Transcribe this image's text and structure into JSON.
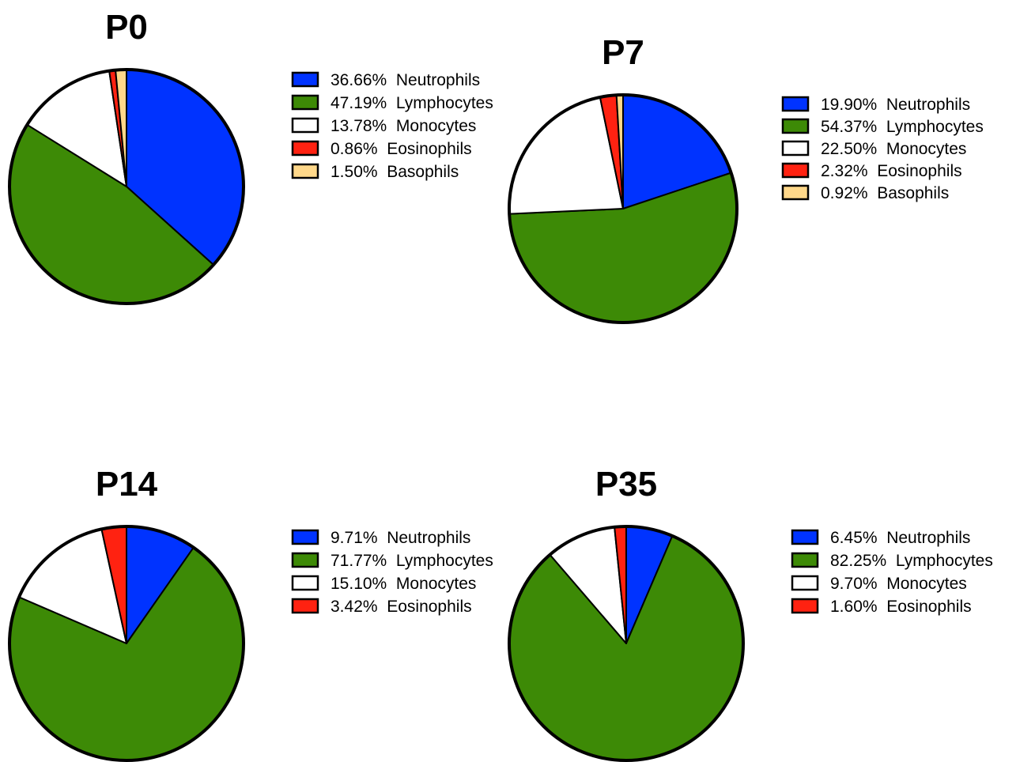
{
  "chart_data": [
    {
      "type": "pie",
      "title": "P0",
      "slices": [
        {
          "label": "36.66%  Neutrophils",
          "name": "Neutrophils",
          "value": 36.66,
          "color": "#0033ff"
        },
        {
          "label": "47.19%  Lymphocytes",
          "name": "Lymphocytes",
          "value": 47.19,
          "color": "#3d8a06"
        },
        {
          "label": "13.78%  Monocytes",
          "name": "Monocytes",
          "value": 13.78,
          "color": "#ffffff"
        },
        {
          "label": "0.86%  Eosinophils",
          "name": "Eosinophils",
          "value": 0.86,
          "color": "#ff2211"
        },
        {
          "label": "1.50%  Basophils",
          "name": "Basophils",
          "value": 1.5,
          "color": "#ffd88a"
        }
      ]
    },
    {
      "type": "pie",
      "title": "P7",
      "slices": [
        {
          "label": "19.90%  Neutrophils",
          "name": "Neutrophils",
          "value": 19.9,
          "color": "#0033ff"
        },
        {
          "label": "54.37%  Lymphocytes",
          "name": "Lymphocytes",
          "value": 54.37,
          "color": "#3d8a06"
        },
        {
          "label": "22.50%  Monocytes",
          "name": "Monocytes",
          "value": 22.5,
          "color": "#ffffff"
        },
        {
          "label": "2.32%  Eosinophils",
          "name": "Eosinophils",
          "value": 2.32,
          "color": "#ff2211"
        },
        {
          "label": "0.92%  Basophils",
          "name": "Basophils",
          "value": 0.92,
          "color": "#ffd88a"
        }
      ]
    },
    {
      "type": "pie",
      "title": "P14",
      "slices": [
        {
          "label": "9.71%  Neutrophils",
          "name": "Neutrophils",
          "value": 9.71,
          "color": "#0033ff"
        },
        {
          "label": "71.77%  Lymphocytes",
          "name": "Lymphocytes",
          "value": 71.77,
          "color": "#3d8a06"
        },
        {
          "label": "15.10%  Monocytes",
          "name": "Monocytes",
          "value": 15.1,
          "color": "#ffffff"
        },
        {
          "label": "3.42%  Eosinophils",
          "name": "Eosinophils",
          "value": 3.42,
          "color": "#ff2211"
        }
      ]
    },
    {
      "type": "pie",
      "title": "P35",
      "slices": [
        {
          "label": "6.45%  Neutrophils",
          "name": "Neutrophils",
          "value": 6.45,
          "color": "#0033ff"
        },
        {
          "label": "82.25%  Lymphocytes",
          "name": "Lymphocytes",
          "value": 82.25,
          "color": "#3d8a06"
        },
        {
          "label": "9.70%  Monocytes",
          "name": "Monocytes",
          "value": 9.7,
          "color": "#ffffff"
        },
        {
          "label": "1.60%  Eosinophils",
          "name": "Eosinophils",
          "value": 1.6,
          "color": "#ff2211"
        }
      ]
    }
  ]
}
